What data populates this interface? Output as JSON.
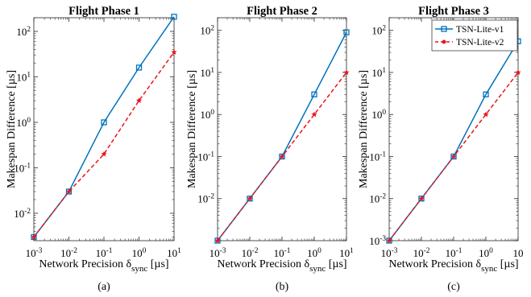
{
  "chart_data": [
    {
      "type": "line",
      "title": "Flight Phase 1",
      "xlabel": "Network Precision δ",
      "xlabel_sub": "sync",
      "xlabel_unit": " [µs]",
      "ylabel": "Makespan Difference [µs]",
      "xscale": "log",
      "yscale": "log",
      "xlim": [
        0.001,
        10
      ],
      "ylim": [
        0.0025,
        200
      ],
      "panel_label": "(a)",
      "x": [
        0.001,
        0.01,
        0.1,
        1,
        10
      ],
      "x_ticks": [
        {
          "base": "10",
          "exp": "-3"
        },
        {
          "base": "10",
          "exp": "-2"
        },
        {
          "base": "10",
          "exp": "-1"
        },
        {
          "base": "10",
          "exp": "0"
        },
        {
          "base": "10",
          "exp": "1"
        }
      ],
      "y_ticks": [
        {
          "value": 0.01,
          "base": "10",
          "exp": "-2"
        },
        {
          "value": 0.1,
          "base": "10",
          "exp": "-1"
        },
        {
          "value": 1,
          "base": "10",
          "exp": "0"
        },
        {
          "value": 10,
          "base": "10",
          "exp": "1"
        },
        {
          "value": 100,
          "base": "10",
          "exp": "2"
        }
      ],
      "series": [
        {
          "name": "TSN-Lite-v1",
          "color": "#0072bd",
          "marker": "square",
          "line": "solid",
          "values": [
            0.003,
            0.03,
            1.0,
            16,
            210
          ]
        },
        {
          "name": "TSN-Lite-v2",
          "color": "#e8141c",
          "marker": "star",
          "line": "dashed",
          "values": [
            0.003,
            0.03,
            0.2,
            3,
            35
          ]
        }
      ],
      "legend": false
    },
    {
      "type": "line",
      "title": "Flight Phase 2",
      "xlabel": "Network Precision δ",
      "xlabel_sub": "sync",
      "xlabel_unit": " [µs]",
      "ylabel": "Makespan Difference [µs]",
      "xscale": "log",
      "yscale": "log",
      "xlim": [
        0.001,
        10
      ],
      "ylim": [
        0.001,
        200
      ],
      "panel_label": "(b)",
      "x": [
        0.001,
        0.01,
        0.1,
        1,
        10
      ],
      "x_ticks": [
        {
          "base": "10",
          "exp": "-3"
        },
        {
          "base": "10",
          "exp": "-2"
        },
        {
          "base": "10",
          "exp": "-1"
        },
        {
          "base": "10",
          "exp": "0"
        },
        {
          "base": "10",
          "exp": "1"
        }
      ],
      "y_ticks": [
        {
          "value": 0.01,
          "base": "10",
          "exp": "-2"
        },
        {
          "value": 0.1,
          "base": "10",
          "exp": "-1"
        },
        {
          "value": 1,
          "base": "10",
          "exp": "0"
        },
        {
          "value": 10,
          "base": "10",
          "exp": "1"
        },
        {
          "value": 100,
          "base": "10",
          "exp": "2"
        }
      ],
      "series": [
        {
          "name": "TSN-Lite-v1",
          "color": "#0072bd",
          "marker": "square",
          "line": "solid",
          "values": [
            0.001,
            0.01,
            0.1,
            3,
            90
          ]
        },
        {
          "name": "TSN-Lite-v2",
          "color": "#e8141c",
          "marker": "star",
          "line": "dashed",
          "values": [
            0.001,
            0.01,
            0.1,
            1,
            10
          ]
        }
      ],
      "legend": false
    },
    {
      "type": "line",
      "title": "Flight Phase 3",
      "xlabel": "Network Precision δ",
      "xlabel_sub": "sync",
      "xlabel_unit": " [µs]",
      "ylabel": "Makespan Difference [µs]",
      "xscale": "log",
      "yscale": "log",
      "xlim": [
        0.001,
        10
      ],
      "ylim": [
        0.001,
        200
      ],
      "panel_label": "(c)",
      "x": [
        0.001,
        0.01,
        0.1,
        1,
        10
      ],
      "x_ticks": [
        {
          "base": "10",
          "exp": "-3"
        },
        {
          "base": "10",
          "exp": "-2"
        },
        {
          "base": "10",
          "exp": "-1"
        },
        {
          "base": "10",
          "exp": "0"
        },
        {
          "base": "10",
          "exp": ""
        }
      ],
      "y_ticks": [
        {
          "value": 0.001,
          "base": "10",
          "exp": "-3"
        },
        {
          "value": 0.01,
          "base": "10",
          "exp": "-2"
        },
        {
          "value": 0.1,
          "base": "10",
          "exp": "-1"
        },
        {
          "value": 1,
          "base": "10",
          "exp": "0"
        },
        {
          "value": 10,
          "base": "10",
          "exp": "1"
        },
        {
          "value": 100,
          "base": "10",
          "exp": "2"
        }
      ],
      "series": [
        {
          "name": "TSN-Lite-v1",
          "color": "#0072bd",
          "marker": "square",
          "line": "solid",
          "values": [
            0.001,
            0.01,
            0.1,
            3,
            55
          ]
        },
        {
          "name": "TSN-Lite-v2",
          "color": "#e8141c",
          "marker": "star",
          "line": "dashed",
          "values": [
            0.001,
            0.01,
            0.1,
            1,
            10
          ]
        }
      ],
      "legend": true,
      "legend_position": "top-right"
    }
  ]
}
